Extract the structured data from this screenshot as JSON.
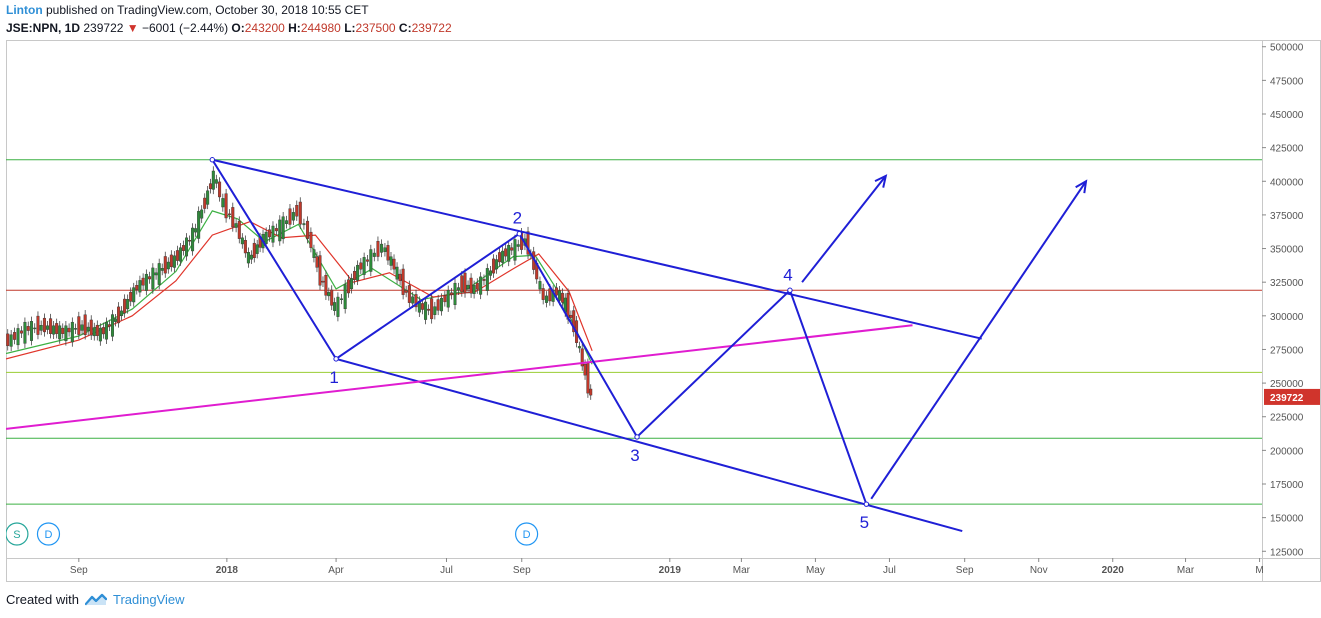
{
  "header": {
    "author": "Linton",
    "publish_text": " published on TradingView.com, October 30, 2018 10:55 CET",
    "symbol": "JSE:NPN, 1D",
    "last": "239722",
    "change_arrow": "▼",
    "change": "−6001 (−2.44%)",
    "open_label": "O:",
    "open": "243200",
    "high_label": "H:",
    "high": "244980",
    "low_label": "L:",
    "low": "237500",
    "close_label": "C:",
    "close": "239722"
  },
  "footer": {
    "created_with": "Created with",
    "brand": "TradingView"
  },
  "chart_data": {
    "type": "line",
    "symbol": "JSE:NPN",
    "interval": "1D",
    "y_ticks": [
      "125000",
      "150000",
      "175000",
      "200000",
      "225000",
      "250000",
      "275000",
      "300000",
      "325000",
      "350000",
      "375000",
      "400000",
      "425000",
      "450000",
      "475000",
      "500000"
    ],
    "y_range": [
      120000,
      505000
    ],
    "x_ticks": [
      {
        "label": "Sep",
        "t": "2017-09-01",
        "bold": false
      },
      {
        "label": "2018",
        "t": "2018-01-01",
        "bold": true
      },
      {
        "label": "Apr",
        "t": "2018-04-01",
        "bold": false
      },
      {
        "label": "Jul",
        "t": "2018-07-01",
        "bold": false
      },
      {
        "label": "Sep",
        "t": "2018-09-01",
        "bold": false
      },
      {
        "label": "2019",
        "t": "2019-01-01",
        "bold": true
      },
      {
        "label": "Mar",
        "t": "2019-03-01",
        "bold": false
      },
      {
        "label": "May",
        "t": "2019-05-01",
        "bold": false
      },
      {
        "label": "Jul",
        "t": "2019-07-01",
        "bold": false
      },
      {
        "label": "Sep",
        "t": "2019-09-01",
        "bold": false
      },
      {
        "label": "Nov",
        "t": "2019-11-01",
        "bold": false
      },
      {
        "label": "2020",
        "t": "2020-01-01",
        "bold": true
      },
      {
        "label": "Mar",
        "t": "2020-03-01",
        "bold": false
      },
      {
        "label": "M",
        "t": "2020-05-01",
        "bold": false
      }
    ],
    "x_range": [
      "2017-07-03",
      "2020-05-03"
    ],
    "last_price": {
      "value": 239722,
      "label": "239722",
      "color": "#d0342c"
    },
    "price_path": [
      [
        "2017-07-03",
        280000
      ],
      [
        "2017-07-20",
        290000
      ],
      [
        "2017-08-05",
        292000
      ],
      [
        "2017-08-20",
        288000
      ],
      [
        "2017-09-05",
        292000
      ],
      [
        "2017-09-20",
        287000
      ],
      [
        "2017-10-05",
        300000
      ],
      [
        "2017-10-20",
        322000
      ],
      [
        "2017-11-05",
        332000
      ],
      [
        "2017-11-20",
        342000
      ],
      [
        "2017-12-05",
        360000
      ],
      [
        "2017-12-15",
        385000
      ],
      [
        "2017-12-22",
        405000
      ],
      [
        "2017-12-30",
        382000
      ],
      [
        "2018-01-10",
        366000
      ],
      [
        "2018-01-20",
        342000
      ],
      [
        "2018-02-01",
        358000
      ],
      [
        "2018-02-15",
        366000
      ],
      [
        "2018-03-01",
        378000
      ],
      [
        "2018-03-10",
        360000
      ],
      [
        "2018-03-20",
        328000
      ],
      [
        "2018-04-01",
        306000
      ],
      [
        "2018-04-10",
        318000
      ],
      [
        "2018-04-20",
        335000
      ],
      [
        "2018-05-01",
        344000
      ],
      [
        "2018-05-10",
        352000
      ],
      [
        "2018-05-20",
        336000
      ],
      [
        "2018-05-30",
        316000
      ],
      [
        "2018-06-10",
        307000
      ],
      [
        "2018-06-20",
        303000
      ],
      [
        "2018-07-01",
        313000
      ],
      [
        "2018-07-15",
        323000
      ],
      [
        "2018-07-25",
        320000
      ],
      [
        "2018-08-05",
        330000
      ],
      [
        "2018-08-15",
        344000
      ],
      [
        "2018-08-25",
        350000
      ],
      [
        "2018-09-05",
        356000
      ],
      [
        "2018-09-12",
        337000
      ],
      [
        "2018-09-20",
        312000
      ],
      [
        "2018-10-01",
        318000
      ],
      [
        "2018-10-08",
        308000
      ],
      [
        "2018-10-15",
        292000
      ],
      [
        "2018-10-22",
        264000
      ],
      [
        "2018-10-29",
        239722
      ]
    ],
    "ma_green": {
      "color": "#3cb043",
      "values": [
        [
          "2017-07-03",
          272000
        ],
        [
          "2017-09-01",
          285000
        ],
        [
          "2017-10-15",
          305000
        ],
        [
          "2017-11-20",
          333000
        ],
        [
          "2017-12-20",
          378000
        ],
        [
          "2018-01-10",
          372000
        ],
        [
          "2018-02-01",
          355000
        ],
        [
          "2018-03-01",
          368000
        ],
        [
          "2018-04-01",
          320000
        ],
        [
          "2018-05-01",
          335000
        ],
        [
          "2018-06-10",
          312000
        ],
        [
          "2018-07-15",
          318000
        ],
        [
          "2018-08-25",
          344000
        ],
        [
          "2018-09-12",
          345000
        ],
        [
          "2018-10-01",
          318000
        ],
        [
          "2018-10-29",
          264000
        ]
      ]
    },
    "ma_red": {
      "color": "#e0352b",
      "values": [
        [
          "2017-07-03",
          268000
        ],
        [
          "2017-09-01",
          282000
        ],
        [
          "2017-10-15",
          300000
        ],
        [
          "2017-11-20",
          326000
        ],
        [
          "2017-12-20",
          360000
        ],
        [
          "2018-01-20",
          370000
        ],
        [
          "2018-02-15",
          358000
        ],
        [
          "2018-03-15",
          360000
        ],
        [
          "2018-04-15",
          325000
        ],
        [
          "2018-05-15",
          332000
        ],
        [
          "2018-06-20",
          314000
        ],
        [
          "2018-07-25",
          318000
        ],
        [
          "2018-08-25",
          335000
        ],
        [
          "2018-09-15",
          346000
        ],
        [
          "2018-10-10",
          318000
        ],
        [
          "2018-10-29",
          274000
        ]
      ]
    },
    "horizontal_levels": [
      {
        "value": 416000,
        "color": "#3cb043"
      },
      {
        "value": 319000,
        "color": "#c0392b"
      },
      {
        "value": 258000,
        "color": "#9acd32"
      },
      {
        "value": 209000,
        "color": "#3cb043"
      },
      {
        "value": 160000,
        "color": "#3cb043"
      }
    ],
    "trendlines": [
      {
        "name": "upper-channel",
        "color": "#1f1fd6",
        "points": [
          [
            "2017-12-20",
            416000
          ],
          [
            "2019-09-15",
            283000
          ]
        ]
      },
      {
        "name": "lower-channel",
        "color": "#1f1fd6",
        "points": [
          [
            "2018-04-01",
            268000
          ],
          [
            "2019-08-30",
            140000
          ]
        ]
      },
      {
        "name": "magenta-trend",
        "color": "#e01cd0",
        "points": [
          [
            "2017-07-03",
            216000
          ],
          [
            "2019-07-20",
            293000
          ]
        ]
      }
    ],
    "wave_path": {
      "color": "#1f1fd6",
      "points": [
        [
          "2017-12-20",
          416000
        ],
        [
          "2018-04-01",
          268000
        ],
        [
          "2018-08-30",
          361000
        ],
        [
          "2018-12-05",
          210000
        ],
        [
          "2019-04-10",
          319000
        ],
        [
          "2019-06-12",
          160000
        ]
      ]
    },
    "wave_labels": [
      {
        "text": "1",
        "t": "2018-04-01",
        "v": 268000,
        "pos": "below"
      },
      {
        "text": "2",
        "t": "2018-08-30",
        "v": 361000,
        "pos": "above"
      },
      {
        "text": "3",
        "t": "2018-12-05",
        "v": 210000,
        "pos": "below"
      },
      {
        "text": "4",
        "t": "2019-04-10",
        "v": 319000,
        "pos": "above"
      },
      {
        "text": "5",
        "t": "2019-06-12",
        "v": 160000,
        "pos": "below"
      }
    ],
    "arrows": [
      {
        "color": "#1f1fd6",
        "from": [
          "2019-04-20",
          325000
        ],
        "to": [
          "2019-06-28",
          404000
        ]
      },
      {
        "color": "#1f1fd6",
        "from": [
          "2019-06-16",
          164000
        ],
        "to": [
          "2019-12-10",
          400000
        ]
      }
    ],
    "event_markers": [
      {
        "text": "S",
        "t": "2017-07-12",
        "color": "#26a69a"
      },
      {
        "text": "D",
        "t": "2017-08-07",
        "color": "#2196f3"
      },
      {
        "text": "D",
        "t": "2018-09-05",
        "color": "#2196f3"
      }
    ]
  }
}
